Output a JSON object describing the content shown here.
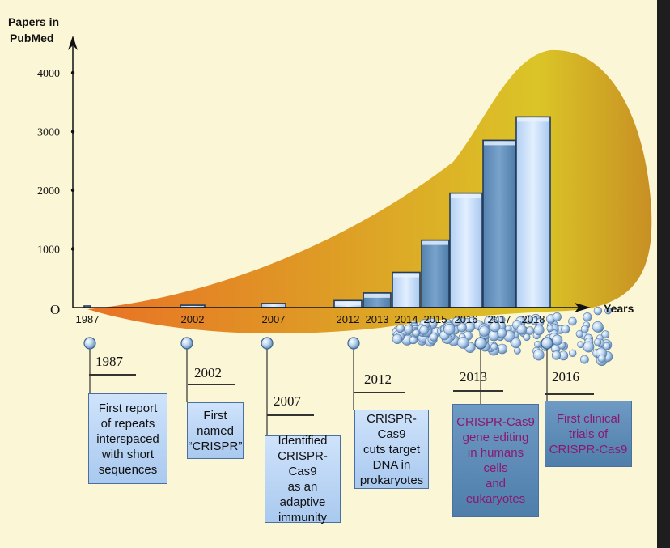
{
  "chart_data": {
    "type": "bar",
    "ylabel": "Papers in\nPubMed",
    "xlabel": "Years",
    "origin_label": "O",
    "yticks": [
      1000,
      2000,
      3000,
      4000
    ],
    "ylim": [
      0,
      4000
    ],
    "categories": [
      "1987",
      "2002",
      "2007",
      "2012",
      "2013",
      "2014",
      "2015",
      "2016",
      "2017",
      "2018"
    ],
    "values": [
      5,
      40,
      70,
      120,
      250,
      600,
      1150,
      1950,
      2850,
      3250
    ]
  },
  "milestones": [
    {
      "year": "1987",
      "text": "First report\nof repeats\ninterspaced\nwith short\nsequences",
      "style": "light"
    },
    {
      "year": "2002",
      "text": "First\nnamed\n“CRISPR”",
      "style": "light"
    },
    {
      "year": "2007",
      "text": "Identified\nCRISPR-Cas9\nas an\nadaptive\nimmunity",
      "style": "light"
    },
    {
      "year": "2012",
      "text": "CRISPR-Cas9\ncuts target\nDNA in\nprokaryotes",
      "style": "light"
    },
    {
      "year": "2013",
      "text": "CRISPR-Cas9\ngene editing\nin humans\ncells\nand\neukaryotes",
      "style": "dark"
    },
    {
      "year": "2016",
      "text": "First clinical\ntrials of\nCRISPR-Cas9",
      "style": "dark"
    }
  ],
  "colors": {
    "axis": "#111111",
    "bar_light": "#c9defa",
    "bar_dark": "#5f8bb8",
    "gold": "#d9b21e",
    "orange": "#e0741f",
    "box_dark_text": "#8a1a70"
  }
}
